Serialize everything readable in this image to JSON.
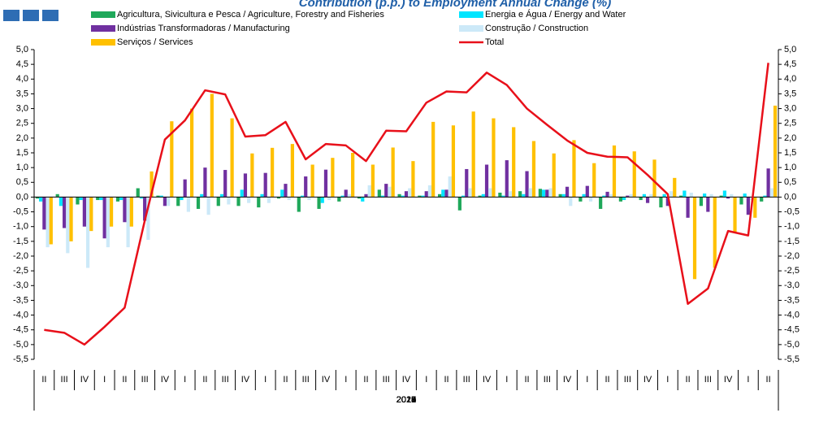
{
  "chart_data": {
    "type": "bar-line",
    "title": "Contribution (p.p.) to Employment Annual Change (%)",
    "categories": [
      "II",
      "III",
      "IV",
      "I",
      "II",
      "III",
      "IV",
      "I",
      "II",
      "III",
      "IV",
      "I",
      "II",
      "III",
      "IV",
      "I",
      "II",
      "III",
      "IV",
      "I",
      "II",
      "III",
      "IV",
      "I",
      "II",
      "III",
      "IV",
      "I",
      "II",
      "III",
      "IV",
      "I",
      "II",
      "III",
      "IV",
      "I",
      "II"
    ],
    "years": [
      "2012",
      "2013",
      "2014",
      "2015",
      "2016",
      "2017",
      "2018",
      "2019",
      "2020",
      "2021"
    ],
    "series": [
      {
        "name": "Agricultura, Sivicultura e Pesca / Agriculture, Forestry and Fisheries",
        "color": "#1fa85a",
        "kind": "bar",
        "values": [
          -0.05,
          0.1,
          -0.25,
          -0.1,
          -0.15,
          0.3,
          0.05,
          -0.3,
          -0.4,
          -0.3,
          -0.3,
          -0.35,
          -0.05,
          -0.5,
          -0.4,
          -0.15,
          -0.05,
          0.25,
          0.1,
          0.05,
          0.1,
          -0.45,
          0.05,
          0.15,
          0.2,
          0.28,
          0.1,
          -0.15,
          -0.4,
          -0.15,
          -0.1,
          -0.35,
          0.05,
          -0.3,
          0.05,
          -0.25,
          -0.15
        ]
      },
      {
        "name": "Energia e Água / Energy and Water",
        "color": "#00e5ff",
        "kind": "bar",
        "values": [
          -0.15,
          -0.3,
          -0.1,
          -0.1,
          -0.1,
          -0.05,
          0.05,
          -0.1,
          0.1,
          0.1,
          0.25,
          0.1,
          0.25,
          0.05,
          -0.2,
          0.05,
          -0.15,
          0.05,
          0.05,
          0.05,
          0.25,
          0.05,
          0.1,
          0.05,
          0.1,
          0.25,
          0.1,
          0.1,
          0.05,
          -0.1,
          0.1,
          0.1,
          0.22,
          0.12,
          0.22,
          0.12,
          0.05
        ]
      },
      {
        "name": "Indústrias Transformadoras / Manufacturing",
        "color": "#7030a0",
        "kind": "bar",
        "values": [
          -1.1,
          -1.05,
          -1.0,
          -1.4,
          -0.85,
          -0.8,
          -0.3,
          0.6,
          1.0,
          0.92,
          0.8,
          0.82,
          0.45,
          0.7,
          0.93,
          0.25,
          0.1,
          0.45,
          0.2,
          0.2,
          0.25,
          0.95,
          1.1,
          1.25,
          0.88,
          0.25,
          0.35,
          0.38,
          0.18,
          0.05,
          -0.2,
          -0.3,
          -0.7,
          -0.5,
          -0.05,
          -0.6,
          0.97
        ]
      },
      {
        "name": "Construção / Construction",
        "color": "#cce9f8",
        "kind": "bar",
        "values": [
          -1.7,
          -1.9,
          -2.4,
          -1.7,
          -1.7,
          -1.45,
          -0.3,
          -0.5,
          -0.6,
          -0.25,
          -0.2,
          -0.2,
          -0.1,
          -0.1,
          -0.1,
          0.1,
          0.4,
          0.35,
          0.3,
          0.4,
          0.7,
          0.3,
          0.3,
          0.2,
          0.3,
          0.3,
          -0.3,
          -0.15,
          0.1,
          0.1,
          0.1,
          0.2,
          0.15,
          0.1,
          0.1,
          -0.1,
          0.3
        ]
      },
      {
        "name": "Serviços / Services",
        "color": "#ffc000",
        "kind": "bar",
        "values": [
          -1.6,
          -1.5,
          -1.15,
          -1.0,
          -1.0,
          0.87,
          2.57,
          3.0,
          3.5,
          2.67,
          1.48,
          1.67,
          1.8,
          1.1,
          1.33,
          1.5,
          1.1,
          1.68,
          1.22,
          2.55,
          2.43,
          2.9,
          2.67,
          2.37,
          1.9,
          1.48,
          1.93,
          1.15,
          1.75,
          1.55,
          1.27,
          0.65,
          -2.78,
          -2.4,
          -1.18,
          -0.7,
          3.1
        ]
      },
      {
        "name": "Total",
        "color": "#e8101a",
        "kind": "line",
        "values": [
          -4.5,
          -4.6,
          -5.0,
          -4.4,
          -3.75,
          -0.8,
          1.95,
          2.6,
          3.62,
          3.48,
          2.05,
          2.1,
          2.55,
          1.28,
          1.8,
          1.75,
          1.22,
          2.25,
          2.23,
          3.2,
          3.58,
          3.55,
          4.22,
          3.8,
          3.0,
          2.45,
          1.92,
          1.5,
          1.37,
          1.35,
          0.75,
          0.1,
          -3.62,
          -3.1,
          -1.15,
          -1.3,
          4.55
        ]
      }
    ],
    "ylim": [
      -5.5,
      5.0
    ],
    "yticks": [
      {
        "value": 5.0,
        "label": "5,0"
      },
      {
        "value": 4.5,
        "label": "4,5"
      },
      {
        "value": 4.0,
        "label": "4,0"
      },
      {
        "value": 3.5,
        "label": "3,5"
      },
      {
        "value": 3.0,
        "label": "3,0"
      },
      {
        "value": 2.5,
        "label": "2,5"
      },
      {
        "value": 2.0,
        "label": "2,0"
      },
      {
        "value": 1.5,
        "label": "1,5"
      },
      {
        "value": 1.0,
        "label": "1,0"
      },
      {
        "value": 0.5,
        "label": "0,5"
      },
      {
        "value": 0,
        "label": "0,0"
      },
      {
        "value": -0.5,
        "label": "-0,5"
      },
      {
        "value": -1.0,
        "label": "-1,0"
      },
      {
        "value": -1.5,
        "label": "-1,5"
      },
      {
        "value": -2.0,
        "label": "-2,0"
      },
      {
        "value": -2.5,
        "label": "-2,5"
      },
      {
        "value": -3.0,
        "label": "-3,0"
      },
      {
        "value": -3.5,
        "label": "-3,5"
      },
      {
        "value": -4.0,
        "label": "-4,0"
      },
      {
        "value": -4.5,
        "label": "-4,5"
      },
      {
        "value": -5.0,
        "label": "-5,0"
      },
      {
        "value": -5.5,
        "label": "-5,5"
      }
    ],
    "y2lim": [
      -5.5,
      5.0
    ],
    "y2ticks": [
      {
        "value": 5.0,
        "label": "5,0"
      },
      {
        "value": 4.5,
        "label": "4,5"
      },
      {
        "value": 4.0,
        "label": "4,0"
      },
      {
        "value": 3.5,
        "label": "3,5"
      },
      {
        "value": 3.0,
        "label": "3,0"
      },
      {
        "value": 2.5,
        "label": "2,5"
      },
      {
        "value": 2.0,
        "label": "2,0"
      },
      {
        "value": 1.5,
        "label": "1,5"
      },
      {
        "value": 1.0,
        "label": "1,0"
      },
      {
        "value": 0.5,
        "label": "0,5"
      },
      {
        "value": 0,
        "label": "0,0"
      },
      {
        "value": -0.5,
        "label": "-0,5"
      },
      {
        "value": -1.0,
        "label": "-1,0"
      },
      {
        "value": -1.5,
        "label": "-1,5"
      },
      {
        "value": -2.0,
        "label": "-2,0"
      },
      {
        "value": -2.5,
        "label": "-2,5"
      },
      {
        "value": -3.0,
        "label": "-3,0"
      },
      {
        "value": -3.5,
        "label": "-3,5"
      },
      {
        "value": -4.0,
        "label": "-4,0"
      },
      {
        "value": -4.5,
        "label": "-4,5"
      },
      {
        "value": -5.0,
        "label": "-5,0"
      },
      {
        "value": -5.5,
        "label": "-5,5"
      }
    ]
  }
}
